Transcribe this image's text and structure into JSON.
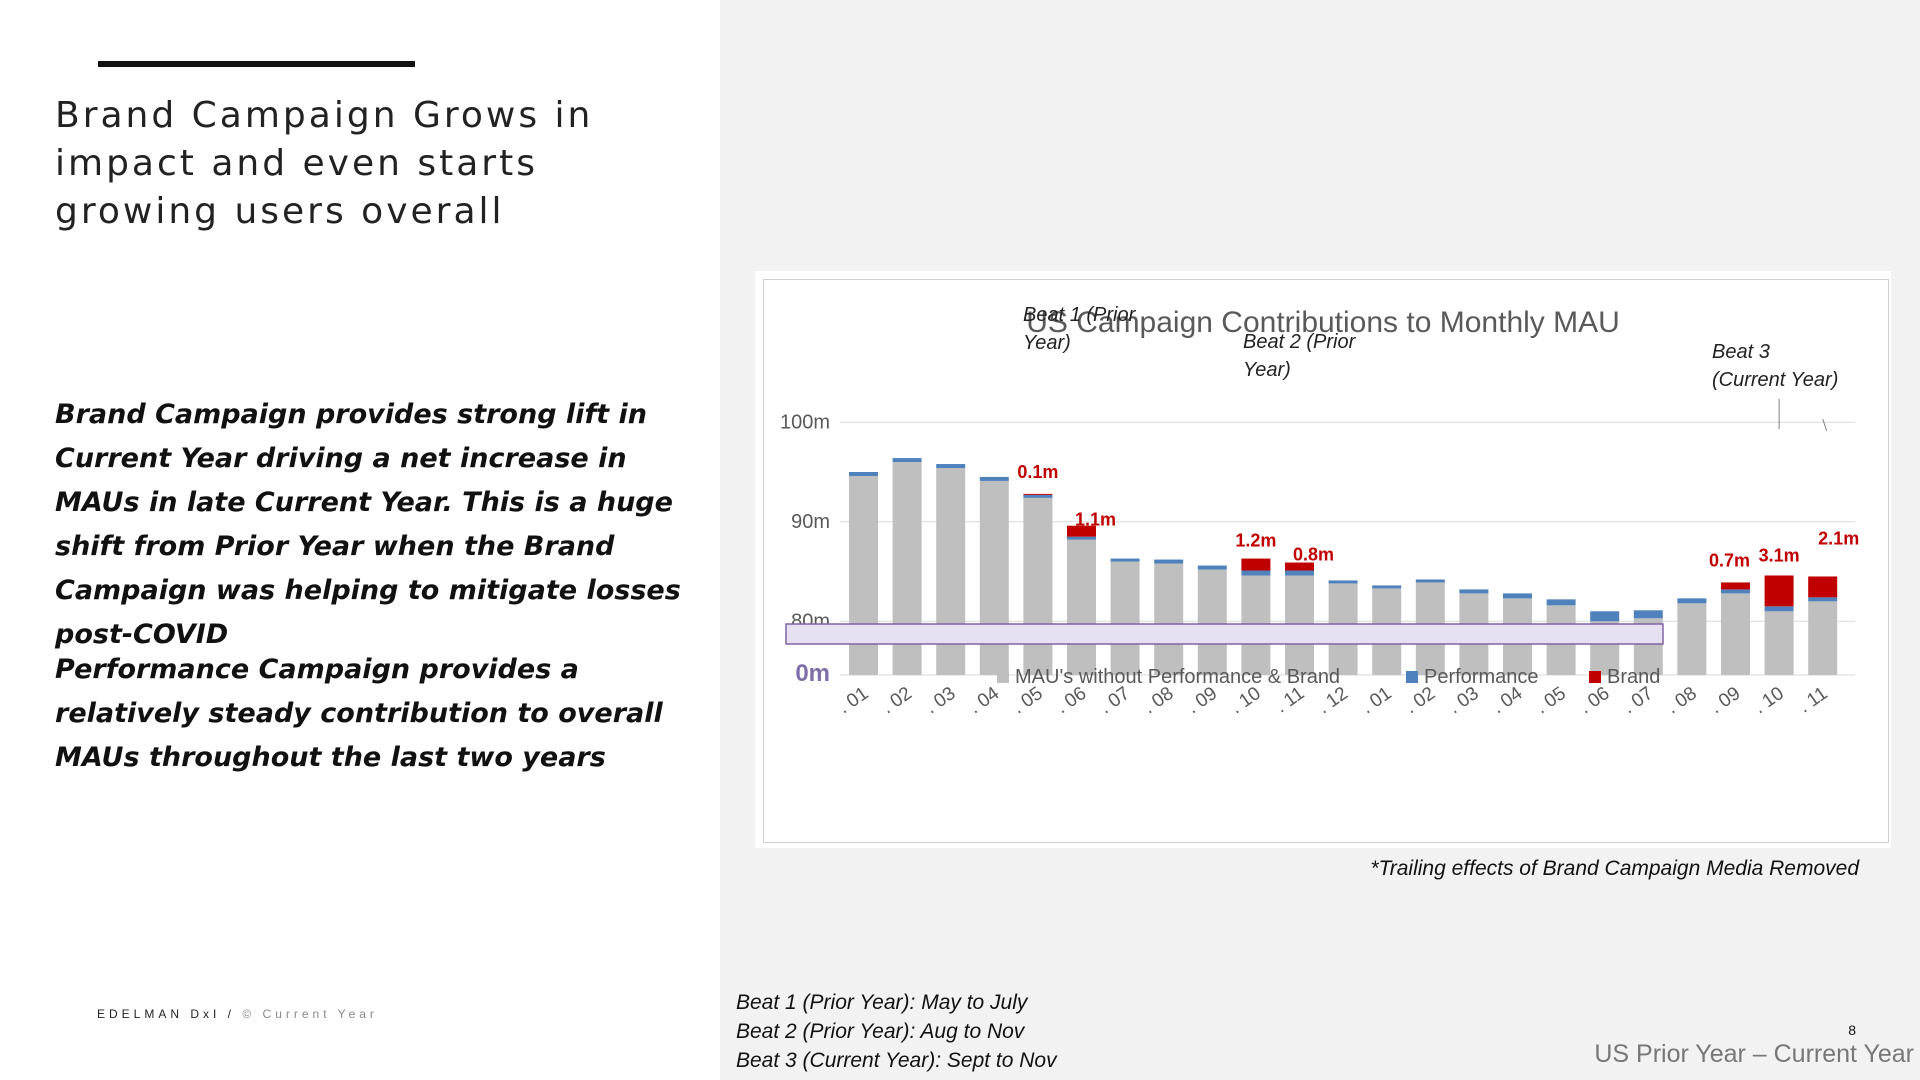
{
  "slide": {
    "title": "Brand Campaign Grows in impact and even starts growing users overall",
    "paragraphs": [
      "Brand Campaign provides strong lift in Current Year driving a net increase in MAUs in late Current Year. This is a huge shift from Prior Year when the Brand Campaign was helping to mitigate losses post-COVID",
      "Performance Campaign provides a relatively steady contribution to overall MAUs throughout the last two years"
    ],
    "footer": {
      "brand": "EDELMAN DxI /",
      "copyright": "© Current Year"
    },
    "footnote": "*Trailing effects of Brand Campaign Media Removed",
    "beat_notes": [
      "Beat 1 (Prior Year): May to July",
      "Beat 2 (Prior Year): Aug to Nov",
      "Beat 3 (Current Year): Sept to Nov"
    ],
    "page_number": "8",
    "period_label": "US Prior Year – Current Year"
  },
  "chart_data": {
    "type": "bar",
    "stacked": true,
    "title": "US Campaign Contributions to Monthly MAU",
    "categories": [
      ". 01",
      ". 02",
      ". 03",
      ". 04",
      ". 05",
      ". 06",
      ". 07",
      ". 08",
      ". 09",
      ". 10",
      ". 11",
      ". 12",
      ". 01",
      ". 02",
      ". 03",
      ". 04",
      ". 05",
      ". 06",
      ". 07",
      ". 08",
      ". 09",
      ". 10",
      ". 11"
    ],
    "series": [
      {
        "name": "MAU's without Performance & Brand",
        "color": "#bfbfbf",
        "values": [
          94.6,
          96.0,
          95.4,
          94.1,
          92.4,
          88.2,
          86.0,
          85.8,
          85.2,
          84.6,
          84.6,
          83.8,
          83.3,
          83.9,
          82.8,
          82.3,
          81.6,
          80.0,
          80.3,
          81.8,
          82.8,
          81.0,
          82.0
        ]
      },
      {
        "name": "Performance",
        "color": "#4f81bd",
        "values": [
          0.4,
          0.4,
          0.4,
          0.4,
          0.3,
          0.3,
          0.3,
          0.4,
          0.4,
          0.5,
          0.5,
          0.3,
          0.3,
          0.3,
          0.4,
          0.5,
          0.6,
          1.0,
          0.8,
          0.5,
          0.4,
          0.5,
          0.4
        ]
      },
      {
        "name": "Brand",
        "color": "#c00000",
        "values": [
          0,
          0,
          0,
          0,
          0.1,
          1.1,
          0,
          0,
          0,
          1.2,
          0.8,
          0,
          0,
          0,
          0,
          0,
          0,
          0,
          0,
          0,
          0.7,
          3.1,
          2.1
        ]
      }
    ],
    "y_ticks": [
      "0m",
      "80m",
      "90m",
      "100m"
    ],
    "y_break": true,
    "y_range": [
      0,
      100
    ],
    "data_labels": [
      {
        "index": 4,
        "text": "0.1m"
      },
      {
        "index": 5,
        "text": "1.1m"
      },
      {
        "index": 9,
        "text": "1.2m"
      },
      {
        "index": 10,
        "text": "0.8m"
      },
      {
        "index": 20,
        "text": "0.7m"
      },
      {
        "index": 21,
        "text": "3.1m"
      },
      {
        "index": 22,
        "text": "2.1m"
      }
    ],
    "annotations": [
      {
        "text": "Beat 1 (Prior Year)",
        "lines": [
          "Beat 1 (Prior",
          "Year)"
        ]
      },
      {
        "text": "Beat 2 (Prior Year)",
        "lines": [
          "Beat 2 (Prior",
          "Year)"
        ]
      },
      {
        "text": "Beat 3 (Current Year)",
        "lines": [
          "Beat 3",
          "(Current Year)"
        ]
      }
    ],
    "legend_position": "bottom",
    "grid": true
  }
}
